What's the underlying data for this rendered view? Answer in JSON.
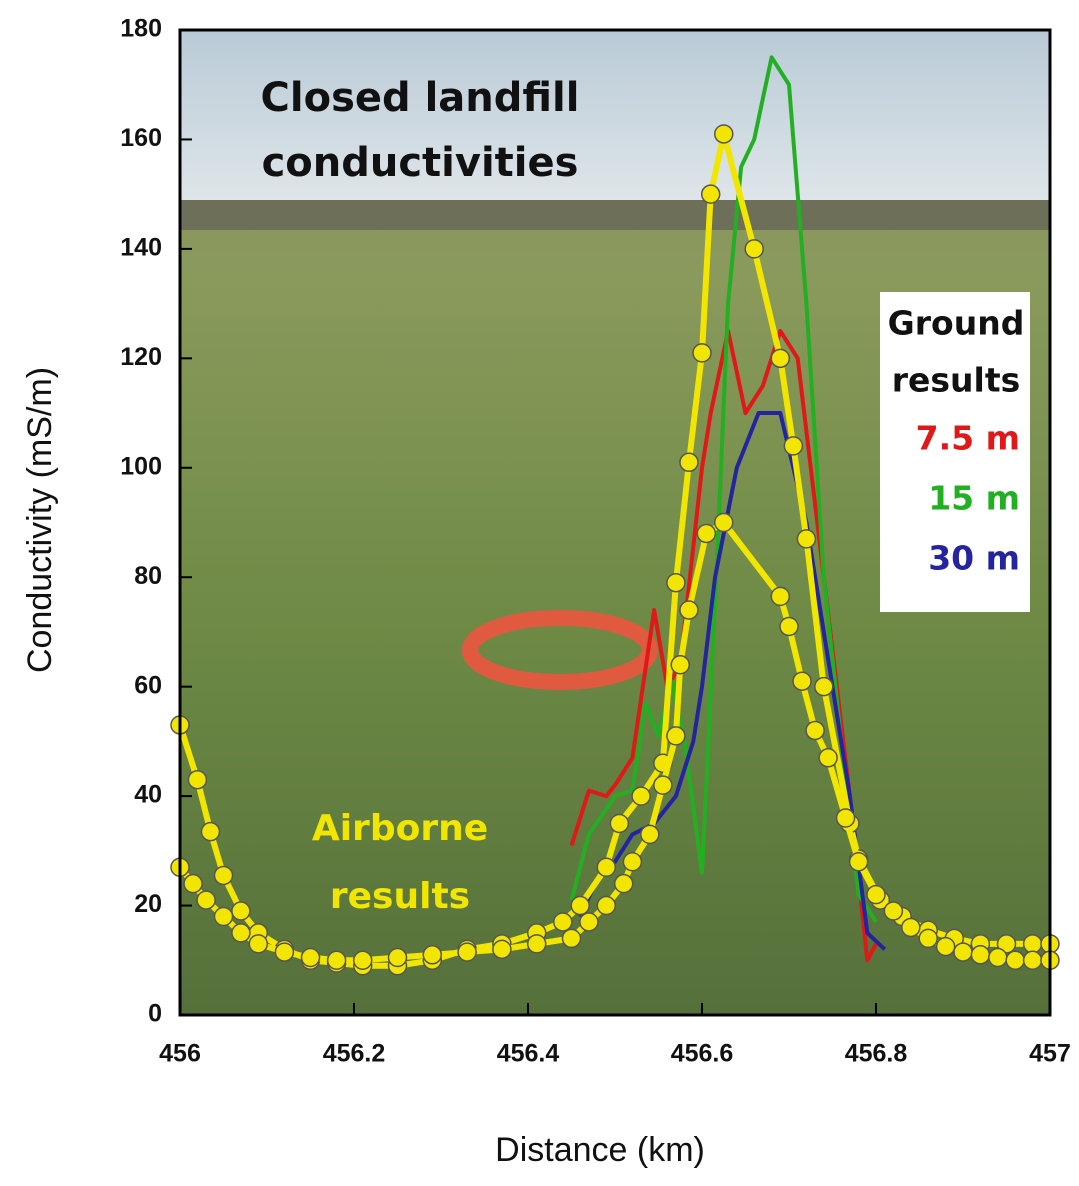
{
  "chart_data": {
    "type": "line",
    "xlabel": "Distance (km)",
    "ylabel": "Conductivity (mS/m)",
    "xlim": [
      456,
      457
    ],
    "xticks": [
      456,
      456.2,
      456.4,
      456.6,
      456.8,
      457
    ],
    "ylim": [
      0,
      180
    ],
    "yticks": [
      0,
      20,
      40,
      60,
      80,
      100,
      120,
      140,
      160,
      180
    ],
    "annotations": [
      "Closed landfill",
      "conductivities",
      "Airborne",
      "results"
    ],
    "legend_title": [
      "Ground",
      "results"
    ],
    "series": [
      {
        "color": "#f2e600",
        "marker": true,
        "x": [
          456.0,
          456.02,
          456.035,
          456.05,
          456.07,
          456.09,
          456.12,
          456.15,
          456.18,
          456.21,
          456.25,
          456.29,
          456.33,
          456.37,
          456.41,
          456.44,
          456.46,
          456.49,
          456.505,
          456.53,
          456.555,
          456.57,
          456.585,
          456.6,
          456.61,
          456.625,
          456.66,
          456.69,
          456.705,
          456.72,
          456.74,
          456.77,
          456.78,
          456.805,
          456.83,
          456.86,
          456.89,
          456.92,
          456.95,
          456.98,
          457.0
        ],
        "values": [
          53,
          43,
          33.5,
          25.5,
          19,
          15,
          12,
          10,
          9.5,
          9,
          9,
          10,
          12,
          13,
          15,
          17,
          20,
          27,
          35,
          40,
          46,
          79,
          101,
          121,
          150,
          161,
          140,
          120,
          104,
          87,
          60,
          35,
          28.5,
          21,
          18,
          15.5,
          14,
          13,
          13,
          13,
          13
        ]
      },
      {
        "color": "#f2e600",
        "marker": true,
        "x": [
          456.0,
          456.015,
          456.03,
          456.05,
          456.07,
          456.09,
          456.12,
          456.15,
          456.18,
          456.21,
          456.25,
          456.29,
          456.33,
          456.37,
          456.41,
          456.45,
          456.47,
          456.49,
          456.51,
          456.52,
          456.54,
          456.555,
          456.57,
          456.575,
          456.585,
          456.605,
          456.625,
          456.69,
          456.7,
          456.715,
          456.73,
          456.745,
          456.765,
          456.78,
          456.8,
          456.82,
          456.84,
          456.86,
          456.88,
          456.9,
          456.92,
          456.94,
          456.96,
          456.98,
          457.0
        ],
        "values": [
          27,
          24,
          21,
          18,
          15,
          13,
          11.5,
          10.5,
          10,
          10,
          10.5,
          11,
          11.5,
          12,
          13,
          14,
          17,
          20,
          24,
          28,
          33,
          42,
          51,
          64,
          74,
          88,
          90,
          76.5,
          71,
          61,
          52,
          47,
          36,
          28,
          22,
          19,
          16,
          14,
          12.5,
          11.5,
          11,
          10.5,
          10,
          10,
          10
        ]
      },
      {
        "name": "7.5 m",
        "color": "#e01818",
        "x": [
          456.45,
          456.47,
          456.49,
          456.5,
          456.52,
          456.545,
          456.56,
          456.575,
          456.6,
          456.61,
          456.63,
          456.65,
          456.67,
          456.69,
          456.71,
          456.74,
          456.77,
          456.79,
          456.8
        ],
        "values": [
          31,
          41,
          40,
          42,
          47,
          74,
          60,
          64,
          100,
          110,
          125,
          110,
          115,
          125,
          120,
          80,
          40,
          10,
          13
        ]
      },
      {
        "name": "15 m",
        "color": "#22b022",
        "x": [
          456.45,
          456.47,
          456.5,
          456.52,
          456.535,
          456.55,
          456.565,
          456.58,
          456.6,
          456.615,
          456.63,
          456.645,
          456.66,
          456.68,
          456.7,
          456.72,
          456.74,
          456.76,
          456.78,
          456.8
        ],
        "values": [
          21,
          33,
          40,
          41,
          57,
          51,
          61,
          50,
          26,
          75,
          130,
          155,
          160,
          175,
          170,
          130,
          80,
          50,
          22,
          17
        ]
      },
      {
        "name": "30 m",
        "color": "#2424a0",
        "x": [
          456.46,
          456.48,
          456.5,
          456.52,
          456.545,
          456.57,
          456.59,
          456.6,
          456.615,
          456.64,
          456.665,
          456.69,
          456.72,
          456.75,
          456.77,
          456.79,
          456.81
        ],
        "values": [
          18,
          25,
          28,
          33,
          35,
          40,
          50,
          60,
          80,
          100,
          110,
          110,
          90,
          60,
          40,
          15,
          12
        ]
      }
    ]
  }
}
